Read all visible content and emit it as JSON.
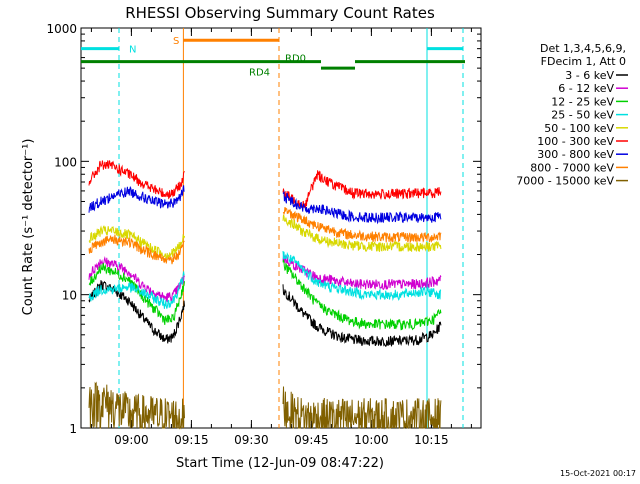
{
  "chart_data": {
    "type": "line",
    "title": "RHESSI Observing Summary Count Rates",
    "xlabel": "Start Time (12-Jun-09 08:47:22)",
    "ylabel": "Count Rate (s⁻¹ detector⁻¹)",
    "yscale": "log",
    "ylim": [
      1,
      1000
    ],
    "xlim_minutes_after_start": [
      0,
      100
    ],
    "x_ticks": [
      {
        "label": "09:00",
        "minute": 12.6
      },
      {
        "label": "09:15",
        "minute": 27.6
      },
      {
        "label": "09:30",
        "minute": 42.6
      },
      {
        "label": "09:45",
        "minute": 57.6
      },
      {
        "label": "10:00",
        "minute": 72.6
      },
      {
        "label": "10:15",
        "minute": 87.6
      }
    ],
    "y_ticks": [
      "1",
      "10",
      "100",
      "1000"
    ],
    "legend_header": [
      "Det 1,3,4,5,6,9,",
      "FDecim 1, Att 0"
    ],
    "legend_position": "right",
    "timestamp": "15-Oct-2021 00:17",
    "annotations": {
      "N": "N",
      "S": "S",
      "RD0": "RD0",
      "RD4": "RD4"
    },
    "data_gaps": [
      [
        26.0,
        50.5
      ]
    ],
    "series": [
      {
        "name": "3 - 6 keV",
        "color": "#000000",
        "points": [
          [
            2,
            9
          ],
          [
            5,
            12
          ],
          [
            8,
            11
          ],
          [
            12,
            9
          ],
          [
            15,
            7
          ],
          [
            18,
            5.5
          ],
          [
            21,
            4.6
          ],
          [
            23,
            4.8
          ],
          [
            25,
            7
          ],
          [
            26,
            9
          ],
          [
            50.5,
            11
          ],
          [
            53,
            9
          ],
          [
            56,
            7
          ],
          [
            59,
            5.8
          ],
          [
            62,
            5.2
          ],
          [
            65,
            4.8
          ],
          [
            68,
            4.6
          ],
          [
            72,
            4.5
          ],
          [
            76,
            4.5
          ],
          [
            80,
            4.5
          ],
          [
            84,
            4.6
          ],
          [
            88,
            5
          ],
          [
            90,
            6
          ]
        ]
      },
      {
        "name": "6 - 12 keV",
        "color": "#d000d0",
        "points": [
          [
            2,
            14
          ],
          [
            5,
            18
          ],
          [
            8,
            17
          ],
          [
            12,
            15
          ],
          [
            15,
            12
          ],
          [
            18,
            10.5
          ],
          [
            21,
            9.5
          ],
          [
            23,
            9.8
          ],
          [
            25,
            12
          ],
          [
            26,
            14
          ],
          [
            50.5,
            19
          ],
          [
            53,
            17
          ],
          [
            56,
            15
          ],
          [
            59,
            13.5
          ],
          [
            62,
            13
          ],
          [
            65,
            12.5
          ],
          [
            68,
            12
          ],
          [
            72,
            12
          ],
          [
            76,
            12
          ],
          [
            80,
            12
          ],
          [
            84,
            12
          ],
          [
            88,
            12.5
          ],
          [
            90,
            13
          ]
        ]
      },
      {
        "name": "12 - 25 keV",
        "color": "#00d000",
        "points": [
          [
            2,
            12
          ],
          [
            5,
            16
          ],
          [
            8,
            15
          ],
          [
            12,
            13
          ],
          [
            15,
            10
          ],
          [
            18,
            8
          ],
          [
            21,
            6.5
          ],
          [
            23,
            6.5
          ],
          [
            25,
            10
          ],
          [
            26,
            13
          ],
          [
            50.5,
            17
          ],
          [
            53,
            14
          ],
          [
            56,
            11
          ],
          [
            59,
            8.5
          ],
          [
            62,
            7.5
          ],
          [
            65,
            6.8
          ],
          [
            68,
            6.3
          ],
          [
            72,
            6
          ],
          [
            76,
            6
          ],
          [
            80,
            6
          ],
          [
            84,
            6
          ],
          [
            88,
            6.5
          ],
          [
            90,
            7.5
          ]
        ]
      },
      {
        "name": "25 - 50 keV",
        "color": "#00e0e0",
        "points": [
          [
            2,
            9.5
          ],
          [
            5,
            11
          ],
          [
            8,
            11
          ],
          [
            12,
            11.5
          ],
          [
            15,
            10.5
          ],
          [
            18,
            9.5
          ],
          [
            21,
            8.5
          ],
          [
            23,
            9
          ],
          [
            25,
            12
          ],
          [
            26,
            15
          ],
          [
            50.5,
            20
          ],
          [
            53,
            18
          ],
          [
            56,
            15
          ],
          [
            59,
            12.5
          ],
          [
            62,
            11.5
          ],
          [
            65,
            11
          ],
          [
            68,
            10.5
          ],
          [
            72,
            10
          ],
          [
            76,
            10
          ],
          [
            80,
            10
          ],
          [
            84,
            10.5
          ],
          [
            88,
            10.5
          ],
          [
            90,
            10
          ]
        ]
      },
      {
        "name": "50 - 100 keV",
        "color": "#d8d800",
        "points": [
          [
            2,
            26
          ],
          [
            5,
            30
          ],
          [
            8,
            30
          ],
          [
            12,
            28
          ],
          [
            15,
            25
          ],
          [
            18,
            22
          ],
          [
            21,
            20
          ],
          [
            23,
            20.5
          ],
          [
            25,
            24
          ],
          [
            26,
            28
          ],
          [
            50.5,
            38
          ],
          [
            53,
            34
          ],
          [
            56,
            29
          ],
          [
            59,
            26.5
          ],
          [
            62,
            25
          ],
          [
            65,
            24
          ],
          [
            68,
            23.5
          ],
          [
            72,
            23
          ],
          [
            76,
            23
          ],
          [
            80,
            23
          ],
          [
            84,
            23
          ],
          [
            88,
            23
          ],
          [
            90,
            23
          ]
        ]
      },
      {
        "name": "100 - 300 keV",
        "color": "#ff0000",
        "points": [
          [
            2,
            70
          ],
          [
            5,
            95
          ],
          [
            8,
            92
          ],
          [
            12,
            80
          ],
          [
            15,
            70
          ],
          [
            18,
            62
          ],
          [
            21,
            57
          ],
          [
            23,
            58
          ],
          [
            25,
            67
          ],
          [
            26,
            90
          ],
          [
            50.5,
            58
          ],
          [
            53,
            52
          ],
          [
            56,
            47
          ],
          [
            59,
            80
          ],
          [
            62,
            70
          ],
          [
            65,
            63
          ],
          [
            68,
            58
          ],
          [
            72,
            57
          ],
          [
            76,
            57
          ],
          [
            80,
            57
          ],
          [
            84,
            58
          ],
          [
            88,
            58
          ],
          [
            90,
            60
          ]
        ]
      },
      {
        "name": "300 - 800 keV",
        "color": "#0000e0",
        "points": [
          [
            2,
            45
          ],
          [
            5,
            50
          ],
          [
            8,
            55
          ],
          [
            12,
            60
          ],
          [
            15,
            55
          ],
          [
            18,
            50
          ],
          [
            21,
            48
          ],
          [
            23,
            49
          ],
          [
            25,
            55
          ],
          [
            26,
            65
          ],
          [
            50.5,
            55
          ],
          [
            53,
            50
          ],
          [
            56,
            44
          ],
          [
            59,
            45
          ],
          [
            62,
            42
          ],
          [
            65,
            40
          ],
          [
            68,
            38.5
          ],
          [
            72,
            38
          ],
          [
            76,
            38
          ],
          [
            80,
            38
          ],
          [
            84,
            38
          ],
          [
            88,
            38
          ],
          [
            90,
            39
          ]
        ]
      },
      {
        "name": "800 - 7000 keV",
        "color": "#ff8000",
        "points": [
          [
            2,
            22
          ],
          [
            5,
            25
          ],
          [
            8,
            26
          ],
          [
            12,
            25
          ],
          [
            15,
            22
          ],
          [
            18,
            20
          ],
          [
            21,
            18.5
          ],
          [
            23,
            18.5
          ],
          [
            25,
            21
          ],
          [
            26,
            24
          ],
          [
            50.5,
            44
          ],
          [
            53,
            40
          ],
          [
            56,
            36
          ],
          [
            59,
            33
          ],
          [
            62,
            31
          ],
          [
            65,
            29
          ],
          [
            68,
            28
          ],
          [
            72,
            27.5
          ],
          [
            76,
            27
          ],
          [
            80,
            27
          ],
          [
            84,
            27
          ],
          [
            88,
            27
          ],
          [
            90,
            28
          ]
        ]
      },
      {
        "name": "7000 - 15000 keV",
        "color": "#806000",
        "points": [
          [
            2,
            1.6
          ],
          [
            5,
            1.6
          ],
          [
            8,
            1.5
          ],
          [
            12,
            1.3
          ],
          [
            25,
            1.2
          ],
          [
            26,
            1.2
          ],
          [
            50.5,
            1.5
          ],
          [
            53,
            1.3
          ],
          [
            56,
            1.2
          ],
          [
            90,
            1.2
          ]
        ]
      }
    ]
  }
}
